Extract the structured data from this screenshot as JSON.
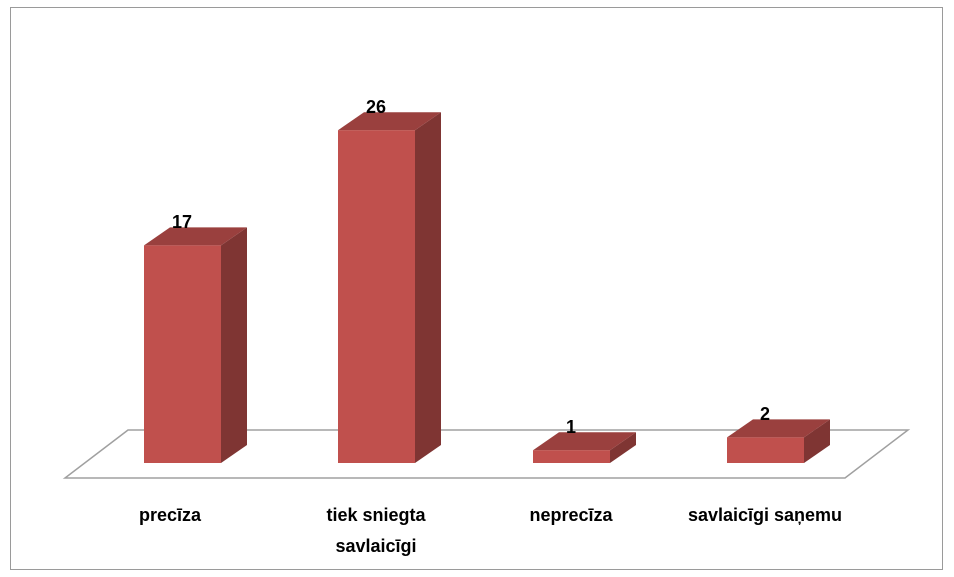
{
  "chart_data": {
    "type": "bar3d",
    "categories": [
      "precīza",
      "tiek sniegta savlaicīgi",
      "neprecīza",
      "savlaicīgi saņemu"
    ],
    "values": [
      17,
      26,
      1,
      2
    ],
    "color": "#c0504d"
  }
}
